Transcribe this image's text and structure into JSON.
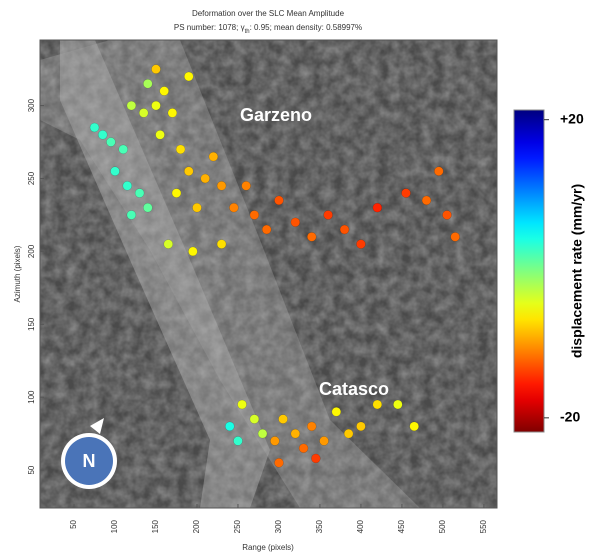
{
  "chart_data": {
    "type": "scatter",
    "title": "Deformation over the SLC Mean Amplitude",
    "subtitle_parts": [
      "PS number: 1078; γ",
      "th",
      ": 0.95; mean density: 0.58997%"
    ],
    "xlabel": "Range (pixels)",
    "ylabel": "Azimuth (pixels)",
    "xlim": [
      8.5,
      566
    ],
    "ylim": [
      24,
      345
    ],
    "xticks": [
      50,
      100,
      150,
      200,
      250,
      300,
      350,
      400,
      450,
      500,
      550
    ],
    "yticks": [
      50,
      100,
      150,
      200,
      250,
      300
    ],
    "x": [
      75,
      85,
      95,
      110,
      100,
      115,
      130,
      140,
      120,
      135,
      150,
      160,
      170,
      155,
      180,
      190,
      175,
      200,
      210,
      220,
      230,
      245,
      260,
      270,
      285,
      300,
      320,
      340,
      360,
      380,
      400,
      420,
      455,
      480,
      495,
      505,
      515,
      165,
      195,
      230,
      140,
      150,
      190,
      120,
      240,
      250,
      255,
      270,
      280,
      295,
      305,
      320,
      330,
      340,
      355,
      370,
      385,
      400,
      420,
      445,
      465,
      300,
      345
    ],
    "y": [
      285,
      280,
      275,
      270,
      255,
      245,
      240,
      230,
      225,
      295,
      300,
      310,
      295,
      280,
      270,
      255,
      240,
      230,
      250,
      265,
      245,
      230,
      245,
      225,
      215,
      235,
      220,
      210,
      225,
      215,
      205,
      230,
      240,
      235,
      255,
      225,
      210,
      205,
      200,
      205,
      315,
      325,
      320,
      300,
      80,
      70,
      95,
      85,
      75,
      70,
      85,
      75,
      65,
      80,
      70,
      90,
      75,
      80,
      95,
      95,
      80,
      55,
      58
    ],
    "rate": [
      3,
      3,
      2,
      2,
      3,
      3,
      2,
      1,
      2,
      -4,
      -5,
      -6,
      -6,
      -5,
      -7,
      -8,
      -6,
      -8,
      -9,
      -9,
      -10,
      -11,
      -11,
      -12,
      -12,
      -13,
      -13,
      -12,
      -14,
      -13,
      -14,
      -15,
      -14,
      -12,
      -12,
      -13,
      -12,
      -4,
      -6,
      -7,
      -2,
      -8,
      -6,
      -3,
      4,
      3,
      -5,
      -4,
      -3,
      -10,
      -8,
      -9,
      -12,
      -11,
      -10,
      -6,
      -8,
      -8,
      -7,
      -5,
      -6,
      -12,
      -14
    ],
    "colorbar": {
      "label": "displacement rate (mm/yr)",
      "clim": [
        -21.9,
        21.3
      ],
      "ticks": [
        {
          "value": 20,
          "label": "+20"
        },
        {
          "value": -20,
          "label": "-20"
        }
      ]
    },
    "annotations": [
      "Garzeno",
      "Catasco",
      "N"
    ]
  }
}
